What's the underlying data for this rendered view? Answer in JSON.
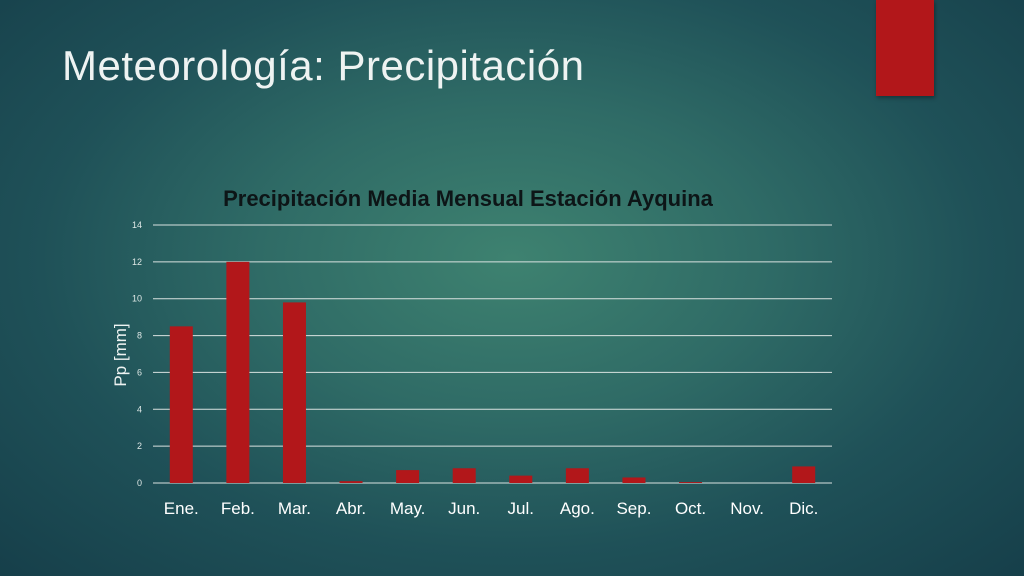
{
  "slide": {
    "title": "Meteorología: Precipitación",
    "accent_color": "#b2171a"
  },
  "chart_data": {
    "type": "bar",
    "title": "Precipitación Media Mensual Estación Ayquina",
    "xlabel": "",
    "ylabel": "Pp [mm]",
    "categories": [
      "Ene.",
      "Feb.",
      "Mar.",
      "Abr.",
      "May.",
      "Jun.",
      "Jul.",
      "Ago.",
      "Sep.",
      "Oct.",
      "Nov.",
      "Dic."
    ],
    "values": [
      8.5,
      12.0,
      9.8,
      0.1,
      0.7,
      0.8,
      0.4,
      0.8,
      0.3,
      0.05,
      0.0,
      0.9
    ],
    "ylim": [
      0,
      14
    ],
    "yticks": [
      0,
      2,
      4,
      6,
      8,
      10,
      12,
      14
    ],
    "grid": true,
    "legend": "none",
    "bar_color": "#b2171a"
  }
}
